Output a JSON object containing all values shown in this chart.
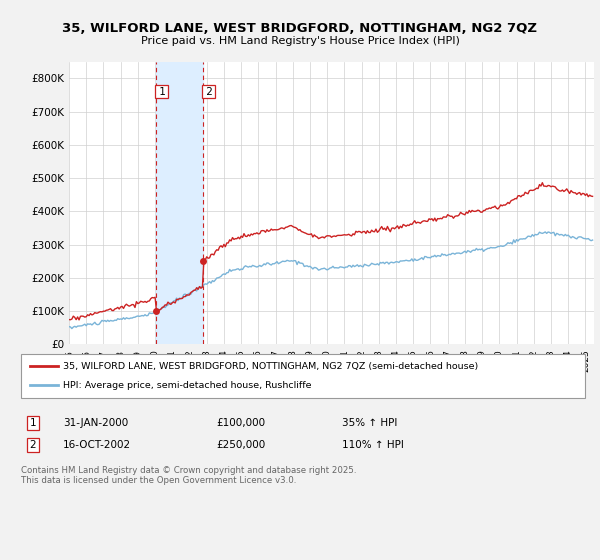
{
  "title": "35, WILFORD LANE, WEST BRIDGFORD, NOTTINGHAM, NG2 7QZ",
  "subtitle": "Price paid vs. HM Land Registry's House Price Index (HPI)",
  "title_fontsize": 9.5,
  "subtitle_fontsize": 8,
  "ylabel_ticks": [
    "£0",
    "£100K",
    "£200K",
    "£300K",
    "£400K",
    "£500K",
    "£600K",
    "£700K",
    "£800K"
  ],
  "ytick_values": [
    0,
    100000,
    200000,
    300000,
    400000,
    500000,
    600000,
    700000,
    800000
  ],
  "ylim": [
    0,
    850000
  ],
  "xlim_start": 1995.0,
  "xlim_end": 2025.5,
  "hpi_color": "#7ab4d8",
  "price_color": "#cc2222",
  "transaction1_date": 2000.08,
  "transaction1_price": 100000,
  "transaction2_date": 2002.8,
  "transaction2_price": 250000,
  "shade_color": "#ddeeff",
  "legend_line1": "35, WILFORD LANE, WEST BRIDGFORD, NOTTINGHAM, NG2 7QZ (semi-detached house)",
  "legend_line2": "HPI: Average price, semi-detached house, Rushcliffe",
  "table_row1": [
    "1",
    "31-JAN-2000",
    "£100,000",
    "35% ↑ HPI"
  ],
  "table_row2": [
    "2",
    "16-OCT-2002",
    "£250,000",
    "110% ↑ HPI"
  ],
  "footnote": "Contains HM Land Registry data © Crown copyright and database right 2025.\nThis data is licensed under the Open Government Licence v3.0.",
  "bg_color": "#f2f2f2",
  "plot_bg_color": "#ffffff"
}
